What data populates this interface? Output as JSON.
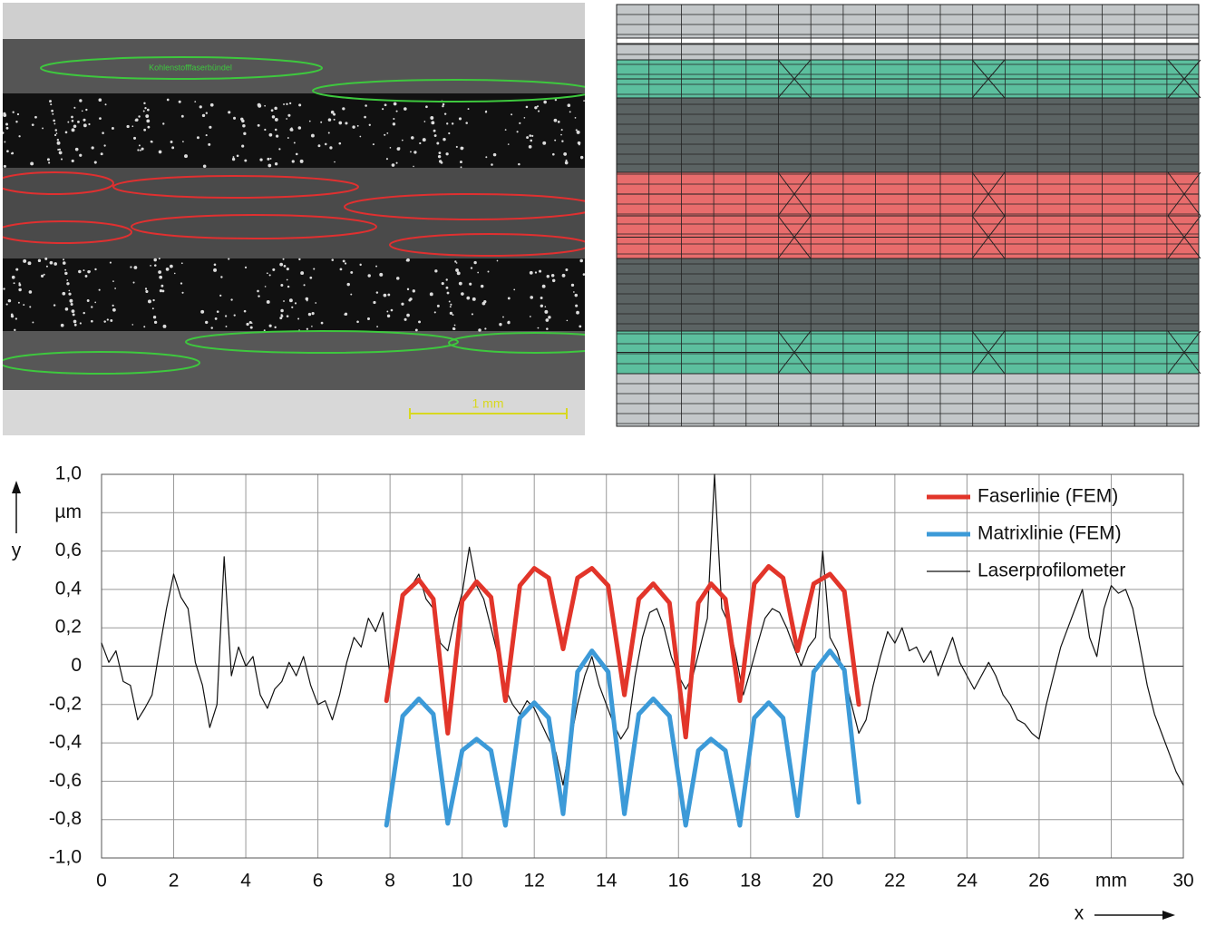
{
  "micrograph": {
    "label": "Kohlenstofffaserbündel",
    "scale_label": "1 mm"
  },
  "chart_data": {
    "type": "line",
    "xlabel": "x",
    "ylabel": "y",
    "xlim": [
      0,
      30
    ],
    "ylim": [
      -1,
      1
    ],
    "xticks": [
      0,
      2,
      4,
      6,
      8,
      10,
      12,
      14,
      16,
      18,
      20,
      22,
      24,
      26,
      {
        "value": 28,
        "label": "mm"
      },
      30
    ],
    "yticks": [
      {
        "value": -1,
        "label": "-1,0"
      },
      {
        "value": -0.8,
        "label": "-0,8"
      },
      {
        "value": -0.6,
        "label": "-0,6"
      },
      {
        "value": -0.4,
        "label": "-0,4"
      },
      {
        "value": -0.2,
        "label": "-0,2"
      },
      0,
      {
        "value": 0.2,
        "label": "0,2"
      },
      {
        "value": 0.4,
        "label": "0,4"
      },
      {
        "value": 0.6,
        "label": "0,6"
      },
      {
        "value": 0.8,
        "label": "µm"
      },
      {
        "value": 1,
        "label": "1,0"
      }
    ],
    "grid": true,
    "legend": "upper right",
    "series": [
      {
        "name": "Faserlinie (FEM)",
        "color": "#e2352a",
        "linewidth": 5,
        "x": [
          7.9,
          8.35,
          8.8,
          9.2,
          9.6,
          10.0,
          10.4,
          10.8,
          11.2,
          11.6,
          12.0,
          12.4,
          12.8,
          13.2,
          13.6,
          14.05,
          14.5,
          14.9,
          15.3,
          15.75,
          16.2,
          16.55,
          16.9,
          17.3,
          17.7,
          18.1,
          18.5,
          18.9,
          19.3,
          19.75,
          20.2,
          20.6,
          21.0
        ],
        "values": [
          -0.18,
          0.37,
          0.45,
          0.35,
          -0.35,
          0.34,
          0.44,
          0.36,
          -0.18,
          0.42,
          0.51,
          0.46,
          0.09,
          0.46,
          0.51,
          0.42,
          -0.15,
          0.35,
          0.43,
          0.33,
          -0.37,
          0.33,
          0.43,
          0.35,
          -0.18,
          0.43,
          0.52,
          0.46,
          0.08,
          0.43,
          0.48,
          0.39,
          -0.2
        ]
      },
      {
        "name": "Matrixlinie (FEM)",
        "color": "#3c9ad8",
        "linewidth": 5,
        "x": [
          7.9,
          8.35,
          8.8,
          9.2,
          9.6,
          10.0,
          10.4,
          10.8,
          11.2,
          11.6,
          12.0,
          12.4,
          12.8,
          13.2,
          13.6,
          14.05,
          14.5,
          14.9,
          15.3,
          15.75,
          16.2,
          16.55,
          16.9,
          17.3,
          17.7,
          18.1,
          18.5,
          18.9,
          19.3,
          19.75,
          20.2,
          20.6,
          21.0
        ],
        "values": [
          -0.83,
          -0.26,
          -0.17,
          -0.25,
          -0.82,
          -0.44,
          -0.38,
          -0.44,
          -0.83,
          -0.27,
          -0.19,
          -0.27,
          -0.77,
          -0.03,
          0.08,
          -0.03,
          -0.77,
          -0.25,
          -0.17,
          -0.26,
          -0.83,
          -0.44,
          -0.38,
          -0.44,
          -0.83,
          -0.27,
          -0.19,
          -0.27,
          -0.78,
          -0.03,
          0.08,
          -0.02,
          -0.71
        ]
      },
      {
        "name": "Laserprofilometer",
        "color": "#111111",
        "linewidth": 1.2,
        "x": [
          0,
          0.2,
          0.4,
          0.6,
          0.8,
          1.0,
          1.2,
          1.4,
          1.6,
          1.8,
          2.0,
          2.2,
          2.4,
          2.6,
          2.8,
          3.0,
          3.2,
          3.4,
          3.6,
          3.8,
          4.0,
          4.2,
          4.4,
          4.6,
          4.8,
          5.0,
          5.2,
          5.4,
          5.6,
          5.8,
          6.0,
          6.2,
          6.4,
          6.6,
          6.8,
          7.0,
          7.2,
          7.4,
          7.6,
          7.8,
          8.0,
          8.2,
          8.4,
          8.6,
          8.8,
          9.0,
          9.2,
          9.4,
          9.6,
          9.8,
          10.0,
          10.2,
          10.4,
          10.6,
          10.8,
          11.0,
          11.2,
          11.4,
          11.6,
          11.8,
          12.0,
          12.2,
          12.4,
          12.6,
          12.8,
          13.0,
          13.2,
          13.4,
          13.6,
          13.8,
          14.0,
          14.2,
          14.4,
          14.6,
          14.8,
          15.0,
          15.2,
          15.4,
          15.6,
          15.8,
          16.0,
          16.2,
          16.4,
          16.6,
          16.8,
          17.0,
          17.2,
          17.4,
          17.6,
          17.8,
          18.0,
          18.2,
          18.4,
          18.6,
          18.8,
          19.0,
          19.2,
          19.4,
          19.6,
          19.8,
          20.0,
          20.2,
          20.4,
          20.6,
          20.8,
          21.0,
          21.2,
          21.4,
          21.6,
          21.8,
          22.0,
          22.2,
          22.4,
          22.6,
          22.8,
          23.0,
          23.2,
          23.4,
          23.6,
          23.8,
          24.0,
          24.2,
          24.4,
          24.6,
          24.8,
          25.0,
          25.2,
          25.4,
          25.6,
          25.8,
          26.0,
          26.2,
          26.4,
          26.6,
          26.8,
          27.0,
          27.2,
          27.4,
          27.6,
          27.8,
          28.0,
          28.2,
          28.4,
          28.6,
          28.8,
          29.0,
          29.2,
          29.4,
          29.6,
          29.8,
          30.0
        ],
        "values": [
          0.12,
          0.02,
          0.08,
          -0.08,
          -0.1,
          -0.28,
          -0.22,
          -0.15,
          0.08,
          0.3,
          0.48,
          0.36,
          0.3,
          0.02,
          -0.1,
          -0.32,
          -0.2,
          0.57,
          -0.05,
          0.1,
          0.0,
          0.05,
          -0.15,
          -0.22,
          -0.12,
          -0.08,
          0.02,
          -0.05,
          0.05,
          -0.1,
          -0.2,
          -0.18,
          -0.28,
          -0.15,
          0.02,
          0.15,
          0.1,
          0.25,
          0.18,
          0.28,
          -0.05,
          0.2,
          0.38,
          0.42,
          0.48,
          0.35,
          0.3,
          0.12,
          0.08,
          0.25,
          0.38,
          0.62,
          0.42,
          0.35,
          0.2,
          0.05,
          -0.12,
          -0.2,
          -0.25,
          -0.18,
          -0.22,
          -0.3,
          -0.38,
          -0.45,
          -0.62,
          -0.4,
          -0.2,
          -0.05,
          0.05,
          -0.1,
          -0.2,
          -0.3,
          -0.38,
          -0.32,
          -0.05,
          0.15,
          0.28,
          0.3,
          0.2,
          0.05,
          -0.05,
          -0.12,
          -0.05,
          0.1,
          0.25,
          1.0,
          0.3,
          0.22,
          0.05,
          -0.15,
          -0.02,
          0.12,
          0.25,
          0.3,
          0.28,
          0.2,
          0.1,
          0.0,
          0.1,
          0.15,
          0.6,
          0.15,
          0.08,
          -0.05,
          -0.2,
          -0.35,
          -0.28,
          -0.1,
          0.05,
          0.18,
          0.12,
          0.2,
          0.08,
          0.1,
          0.02,
          0.08,
          -0.05,
          0.05,
          0.15,
          0.02,
          -0.05,
          -0.12,
          -0.05,
          0.02,
          -0.05,
          -0.15,
          -0.2,
          -0.28,
          -0.3,
          -0.35,
          -0.38,
          -0.2,
          -0.05,
          0.1,
          0.2,
          0.3,
          0.4,
          0.15,
          0.05,
          0.3,
          0.42,
          0.38,
          0.4,
          0.3,
          0.1,
          -0.1,
          -0.25,
          -0.35,
          -0.45,
          -0.55,
          -0.62
        ]
      }
    ]
  }
}
